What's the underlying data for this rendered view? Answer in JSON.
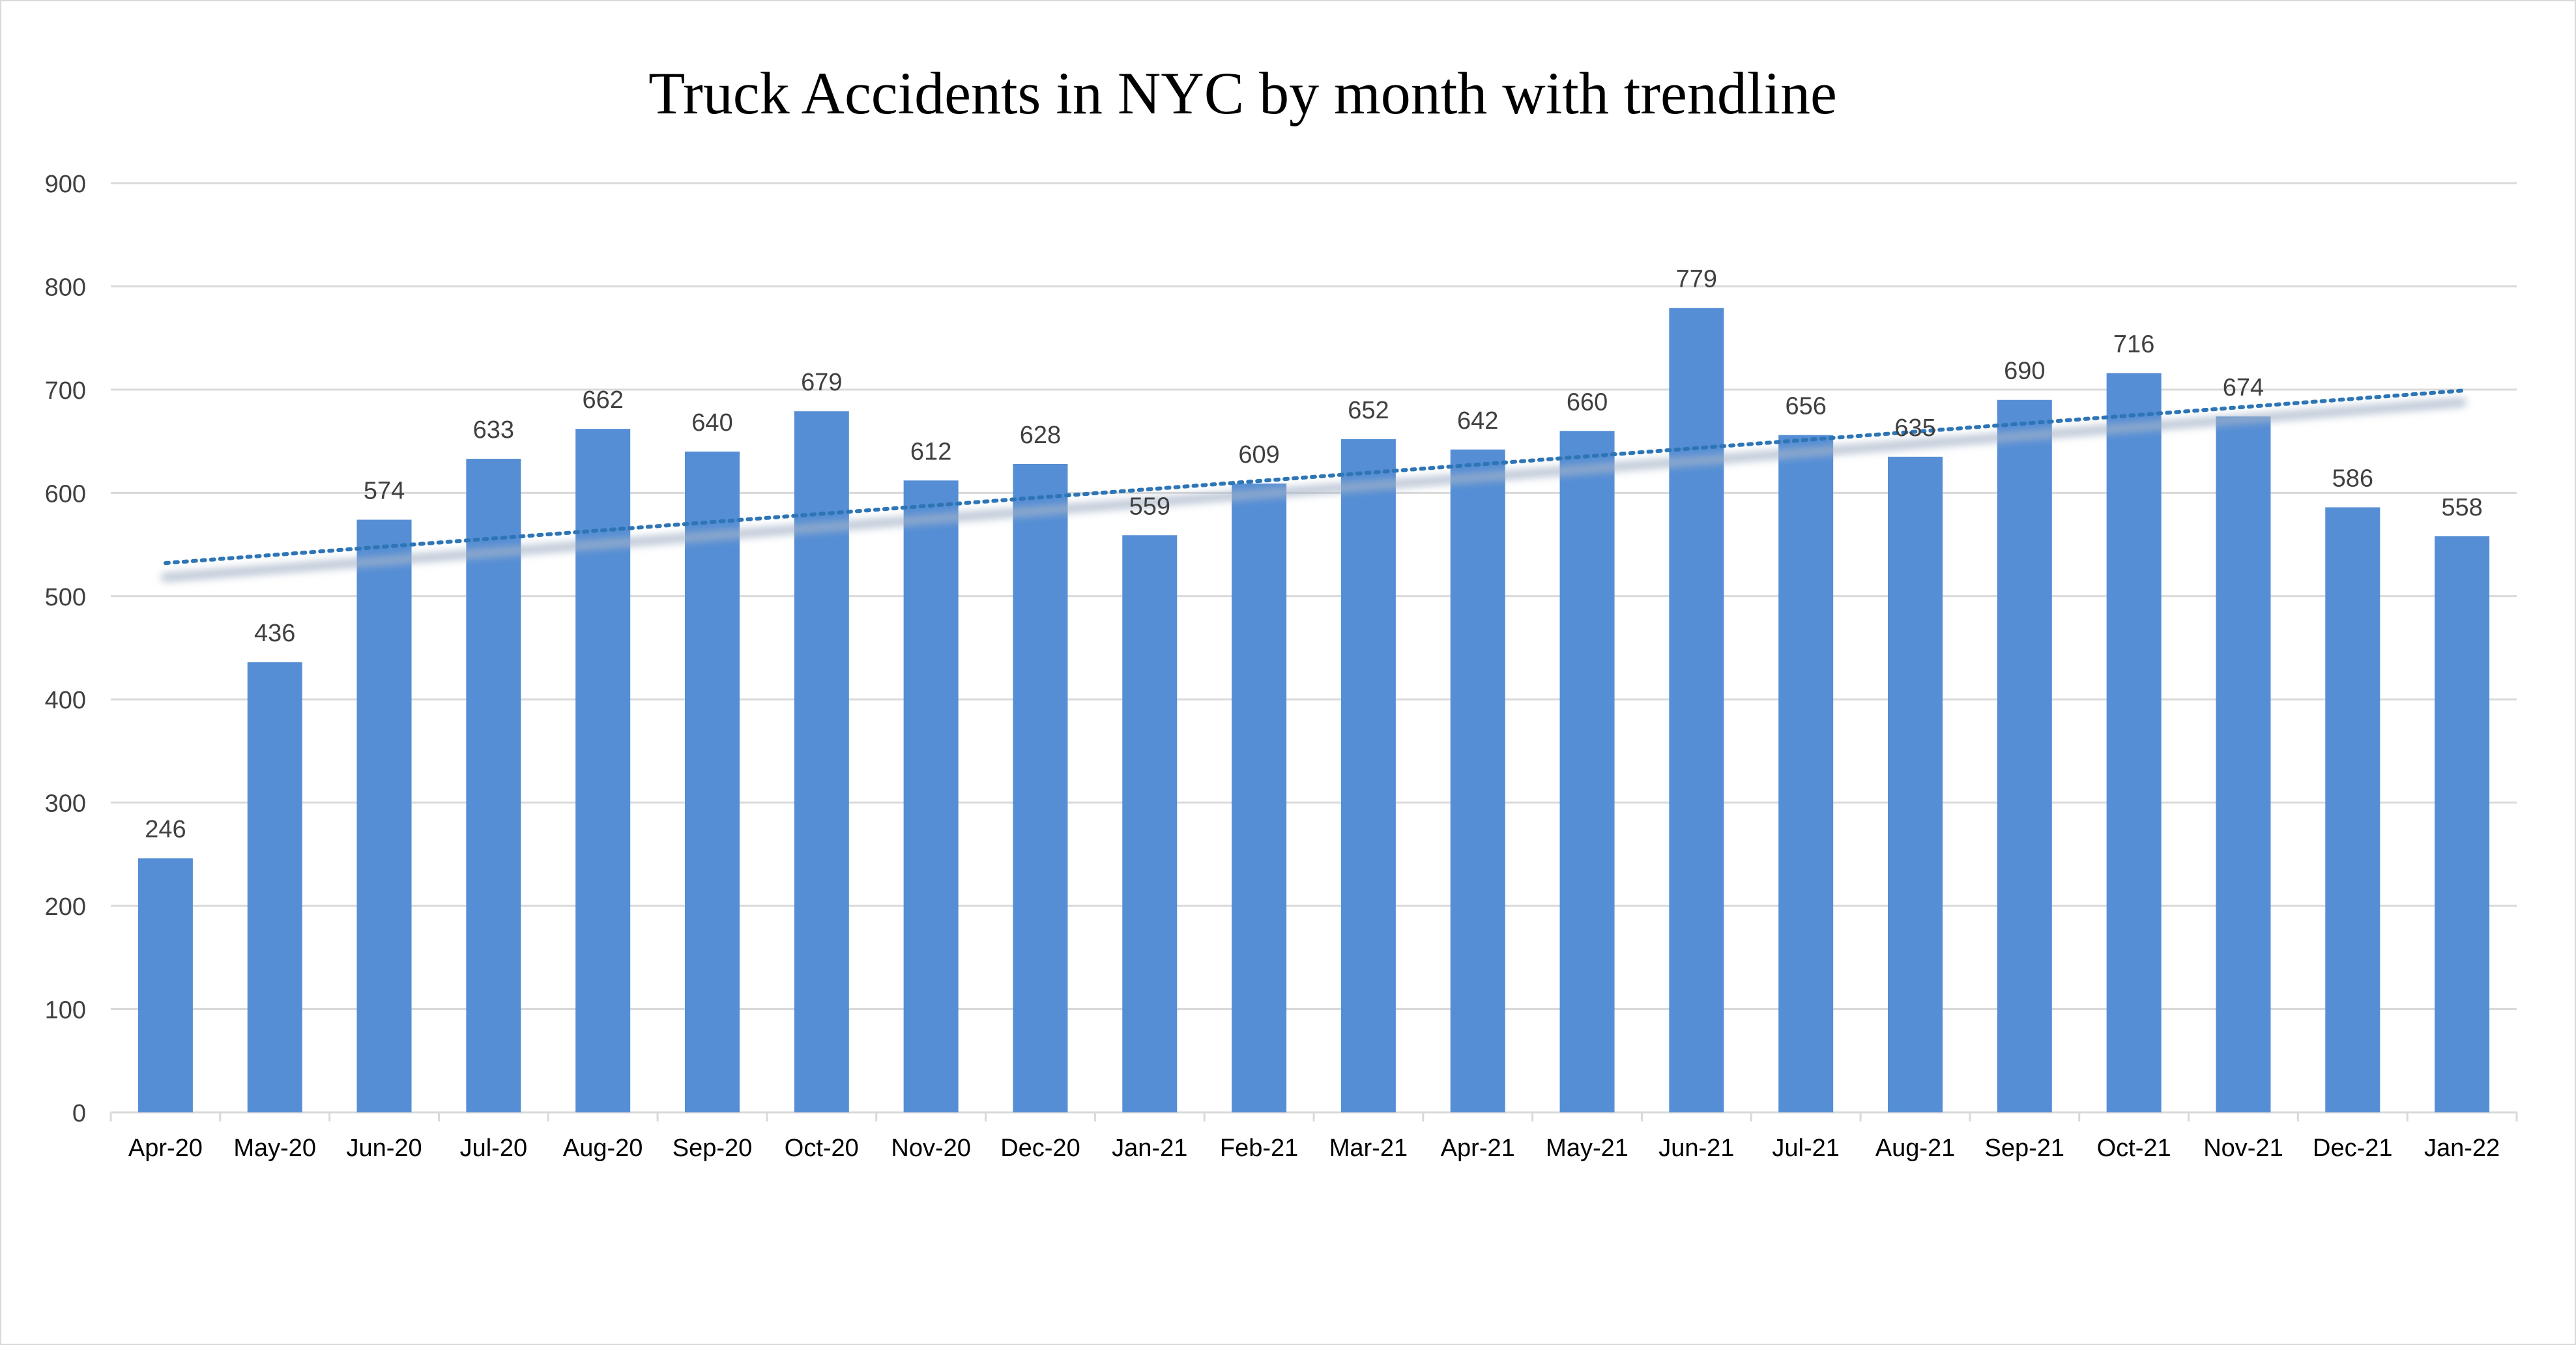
{
  "chart_data": {
    "type": "bar",
    "title": "Truck Accidents in NYC by month with trendline",
    "xlabel": "",
    "ylabel": "",
    "ylim": [
      0,
      900
    ],
    "yticks": [
      0,
      100,
      200,
      300,
      400,
      500,
      600,
      700,
      800,
      900
    ],
    "grid": true,
    "legend": "none",
    "categories": [
      "Apr-20",
      "May-20",
      "Jun-20",
      "Jul-20",
      "Aug-20",
      "Sep-20",
      "Oct-20",
      "Nov-20",
      "Dec-20",
      "Jan-21",
      "Feb-21",
      "Mar-21",
      "Apr-21",
      "May-21",
      "Jun-21",
      "Jul-21",
      "Aug-21",
      "Sep-21",
      "Oct-21",
      "Nov-21",
      "Dec-21",
      "Jan-22"
    ],
    "values": [
      246,
      436,
      574,
      633,
      662,
      640,
      679,
      612,
      628,
      559,
      609,
      652,
      642,
      660,
      779,
      656,
      635,
      690,
      716,
      674,
      586,
      558
    ],
    "trendline": {
      "type": "linear",
      "style": "dotted",
      "start": 532,
      "end": 699
    },
    "colors": {
      "bar": "#558ed5",
      "trendline": "#2e75b6",
      "trend_shadow": "#a6b4c8",
      "grid": "#d9d9d9",
      "text": "#404040"
    }
  }
}
